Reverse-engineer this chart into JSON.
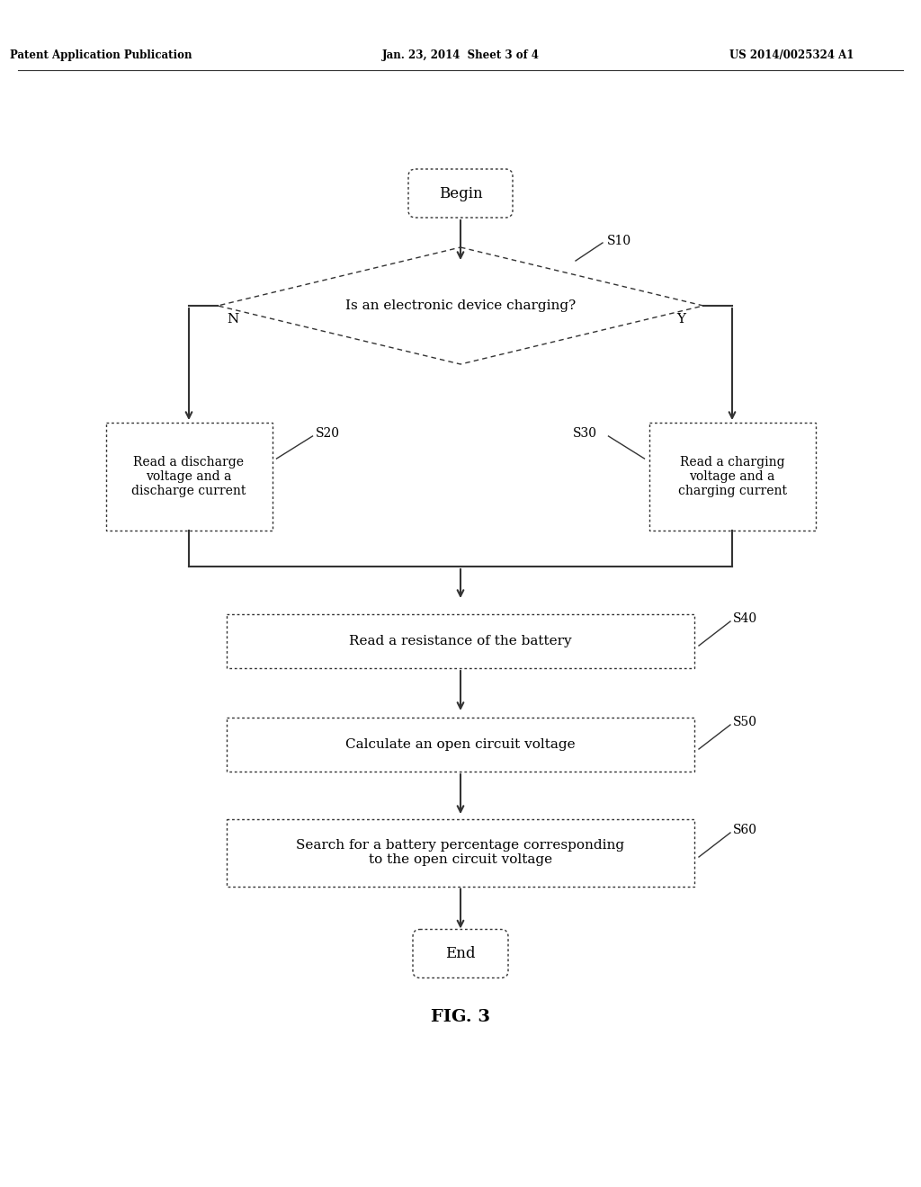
{
  "bg_color": "#ffffff",
  "header_left": "Patent Application Publication",
  "header_mid": "Jan. 23, 2014  Sheet 3 of 4",
  "header_right": "US 2014/0025324 A1",
  "fig_label": "FIG. 3",
  "line_color": "#333333",
  "text_color": "#000000"
}
